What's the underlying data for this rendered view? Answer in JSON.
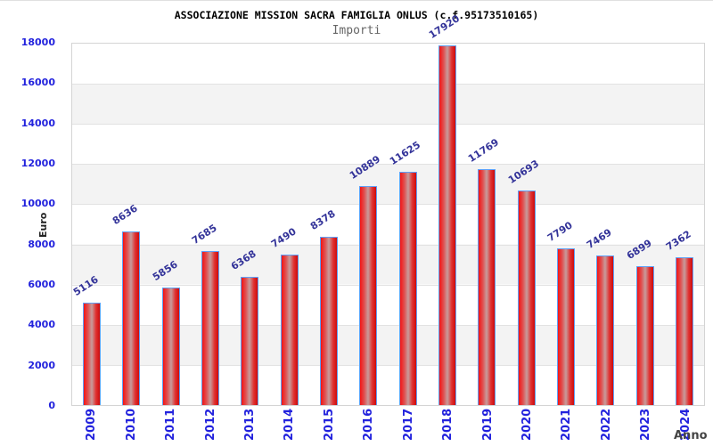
{
  "chart_data": {
    "type": "bar",
    "title": "ASSOCIAZIONE MISSION SACRA FAMIGLIA ONLUS (c.f.95173510165)",
    "subtitle": "Importi",
    "xlabel": "Anno",
    "ylabel": "Euro",
    "categories": [
      "2009",
      "2010",
      "2011",
      "2012",
      "2013",
      "2014",
      "2015",
      "2016",
      "2017",
      "2018",
      "2019",
      "2020",
      "2021",
      "2022",
      "2023",
      "2024"
    ],
    "values": [
      5116,
      8636,
      5856,
      7685,
      6368,
      7490,
      8378,
      10889,
      11625,
      17920,
      11769,
      10693,
      7790,
      7469,
      6899,
      7362
    ],
    "ylim": [
      0,
      18000
    ],
    "yticks": [
      "18000",
      "16000",
      "14000",
      "12000",
      "10000",
      "8000",
      "6000",
      "4000",
      "2000",
      "0"
    ],
    "grid": "horizontal gridlines every 2000, alternating white and light-gray bands",
    "legend_position": "none",
    "colors": {
      "bar_fill": "#e32222",
      "bar_border": "#5ea0f8",
      "axis_tick_labels": "#2222dd",
      "value_labels": "#333399",
      "band_gray": "#f3f3f3",
      "gridline": "#e2e2e2",
      "title_color": "#000000",
      "subtitle_color": "#666666"
    }
  }
}
